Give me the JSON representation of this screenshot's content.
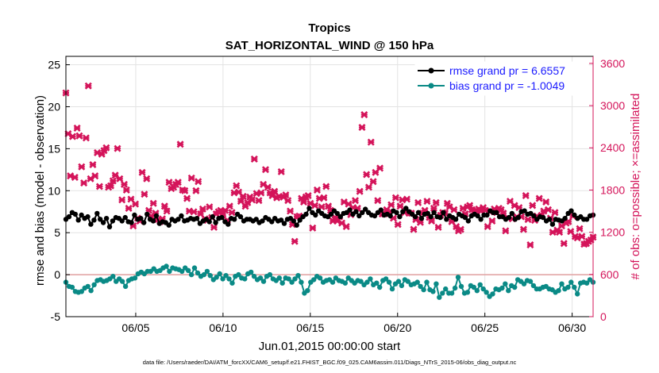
{
  "chart_data": {
    "type": "line",
    "title": "Tropics",
    "subtitle": "SAT_HORIZONTAL_WIND @ 150 hPa",
    "xlabel": "Jun.01,2015 00:00:00 start",
    "ylabel": "rmse and bias (model - observation)",
    "y2label": "# of obs: o=possible; ×=assimilated",
    "footer": "data file: /Users/raeder/DAI/ATM_forcXX/CAM6_setup/f.e21.FHIST_BGC.f09_025.CAM6assim.011/Diags_NTrS_2015-06/obs_diag_output.nc",
    "xlim": [
      1.0,
      31.2
    ],
    "ylim": [
      -5,
      26
    ],
    "y2lim": [
      0,
      3700
    ],
    "x_ticks": [
      5,
      10,
      15,
      20,
      25,
      30
    ],
    "x_tick_labels": [
      "06/05",
      "06/10",
      "06/15",
      "06/20",
      "06/25",
      "06/30"
    ],
    "y_ticks": [
      -5,
      0,
      5,
      10,
      15,
      20,
      25
    ],
    "y_tick_labels": [
      "-5",
      "0",
      "5",
      "10",
      "15",
      "20",
      "25"
    ],
    "y2_ticks": [
      0,
      600,
      1200,
      1800,
      2400,
      3000,
      3600
    ],
    "y2_tick_labels": [
      "0",
      "600",
      "1200",
      "1800",
      "2400",
      "3000",
      "3600"
    ],
    "grid": true,
    "legend_position": "top-right",
    "zero_line": 0,
    "colors": {
      "rmse": "#000000",
      "bias": "#0a8a86",
      "obs": "#d4145a",
      "legend_text": "#1a1aff",
      "grid": "#e3e3e3",
      "zero": "#e0a0a0"
    },
    "series": [
      {
        "name": "rmse grand pr = 6.6557",
        "axis": "left",
        "marker": "circle",
        "values": [
          6.6,
          6.9,
          7.4,
          7.2,
          6.5,
          7.1,
          6.7,
          6.9,
          6.0,
          6.5,
          7.3,
          6.6,
          6.2,
          6.7,
          5.7,
          6.4,
          6.8,
          6.7,
          6.4,
          6.8,
          6.3,
          6.2,
          7.1,
          6.6,
          6.7,
          6.2,
          7.2,
          6.6,
          6.4,
          7.0,
          6.1,
          6.3,
          6.2,
          5.9,
          6.6,
          6.4,
          6.6,
          7.0,
          6.4,
          6.5,
          6.7,
          6.6,
          6.7,
          6.1,
          6.4,
          6.6,
          6.3,
          6.9,
          6.2,
          6.7,
          6.8,
          6.3,
          6.0,
          6.7,
          6.6,
          7.2,
          6.9,
          6.4,
          6.6,
          6.6,
          6.4,
          6.6,
          6.2,
          6.4,
          6.8,
          6.6,
          6.3,
          6.7,
          6.4,
          6.5,
          6.1,
          6.6,
          6.7,
          6.4,
          5.9,
          6.5,
          6.9,
          7.2,
          7.9,
          7.4,
          7.1,
          7.6,
          7.3,
          7.0,
          6.9,
          7.2,
          7.6,
          7.3,
          6.9,
          7.3,
          7.4,
          7.7,
          7.2,
          7.5,
          7.0,
          7.4,
          7.8,
          7.4,
          7.1,
          7.0,
          7.4,
          7.7,
          7.1,
          7.2,
          7.0,
          7.6,
          7.4,
          6.9,
          7.5,
          7.9,
          7.5,
          7.2,
          6.9,
          7.4,
          6.7,
          7.2,
          7.3,
          6.9,
          7.4,
          6.9,
          6.8,
          7.4,
          6.6,
          7.0,
          6.8,
          6.6,
          7.2,
          7.0,
          6.8,
          6.4,
          7.0,
          7.2,
          7.0,
          6.6,
          7.1,
          7.1,
          7.6,
          7.4,
          7.4,
          6.9,
          6.9,
          6.6,
          6.8,
          7.3,
          6.6,
          6.8,
          7.5,
          7.6,
          7.2,
          7.3,
          7.0,
          6.6,
          6.9,
          6.8,
          6.4,
          6.6,
          6.0,
          6.6,
          6.5,
          6.4,
          6.7,
          7.3,
          7.6,
          7.1,
          6.7,
          6.9,
          6.6,
          6.6,
          7.0,
          7.1
        ]
      },
      {
        "name": "bias grand pr = -1.0049",
        "axis": "left",
        "marker": "circle",
        "values": [
          -0.9,
          -1.4,
          -1.5,
          -2.0,
          -2.1,
          -2.0,
          -1.6,
          -1.4,
          -1.9,
          -1.2,
          -0.7,
          -0.6,
          -0.8,
          -0.7,
          -0.5,
          -0.2,
          -0.8,
          -0.5,
          -0.8,
          -1.4,
          -0.7,
          -0.5,
          -0.4,
          0.1,
          0.3,
          0.1,
          0.4,
          0.4,
          0.7,
          0.4,
          0.5,
          0.8,
          1.0,
          0.4,
          0.8,
          0.7,
          0.6,
          0.4,
          0.8,
          0.5,
          0.0,
          0.8,
          0.2,
          -0.2,
          0.0,
          0.4,
          -0.1,
          -0.6,
          -0.3,
          0.1,
          -0.5,
          -0.1,
          -0.5,
          -1.0,
          -0.2,
          0.0,
          -0.4,
          -0.5,
          0.1,
          0.3,
          -0.2,
          -0.6,
          -0.4,
          -0.8,
          -0.2,
          0.0,
          -0.5,
          -0.7,
          -0.4,
          -1.0,
          -0.4,
          -0.5,
          -0.9,
          -0.5,
          -0.1,
          -0.9,
          -2.2,
          -1.9,
          -0.9,
          -0.6,
          -0.2,
          -0.4,
          -0.9,
          -0.7,
          -0.6,
          -0.9,
          -0.4,
          -0.7,
          -0.8,
          -1.0,
          -0.4,
          -0.7,
          -1.0,
          -0.7,
          -0.8,
          -1.2,
          -0.9,
          -0.5,
          -1.2,
          -1.0,
          -1.5,
          -0.7,
          -0.5,
          -0.9,
          -1.7,
          -1.1,
          -0.8,
          -1.3,
          -0.6,
          -0.8,
          -1.2,
          -1.1,
          -0.9,
          -1.4,
          -1.8,
          -0.9,
          -1.8,
          -2.0,
          -1.1,
          -2.7,
          -2.2,
          -1.7,
          -2.2,
          -2.2,
          -1.6,
          -0.3,
          -1.4,
          -2.2,
          -2.1,
          -1.3,
          -1.5,
          -1.9,
          -1.2,
          -1.7,
          -2.1,
          -2.6,
          -2.3,
          -1.7,
          -1.8,
          -1.6,
          -1.1,
          -1.9,
          -1.3,
          -1.5,
          -0.6,
          -0.8,
          -1.1,
          -0.7,
          -0.8,
          -1.3,
          -1.7,
          -1.7,
          -1.5,
          -1.4,
          -1.7,
          -1.8,
          -2.1,
          -1.9,
          -1.1,
          -1.7,
          -1.5,
          -0.9,
          -1.5,
          -2.3,
          -1.0,
          -0.9,
          -1.0,
          -0.6,
          -0.9
        ]
      },
      {
        "name": "# of obs assimilated",
        "axis": "right",
        "marker": "x",
        "values": [
          3180,
          2600,
          2000,
          2560,
          1980,
          2680,
          2570,
          2130,
          1900,
          2540,
          3280,
          1960,
          2160,
          2000,
          2330,
          1850,
          2310,
          2360,
          2400,
          1840,
          1860,
          1930,
          2010,
          2390,
          1960,
          1660,
          1880,
          1800,
          1540,
          1670,
          1290,
          1600,
          1400,
          1360,
          2050,
          1740,
          1960,
          1510,
          1430,
          1610,
          1470,
          1380,
          1350,
          1390,
          1570,
          1500,
          1910,
          1820,
          1840,
          1880,
          1910,
          2450,
          1800,
          1790,
          1680,
          1500,
          1970,
          1490,
          1790,
          1920,
          1460,
          1530,
          1390,
          1370,
          1560,
          1410,
          1270,
          1460,
          1490,
          1510,
          1460,
          1510,
          1370,
          1570,
          1480,
          1760,
          1860,
          1770,
          1640,
          1710,
          1570,
          1620,
          1700,
          1660,
          2240,
          1750,
          1650,
          1760,
          1880,
          2090,
          1840,
          1760,
          1720,
          1780,
          1690,
          1710,
          2060,
          1700,
          1730,
          1650,
          1500,
          1310,
          1070,
          1420,
          1430,
          1680,
          1630,
          1700,
          1720,
          1610,
          1260,
          1580,
          1800,
          1680,
          1560,
          1690,
          1850,
          1570,
          1510,
          1360,
          1410,
          1360,
          1420,
          1330,
          1630,
          1280,
          1600,
          1450,
          1550,
          1650,
          1540,
          1780,
          2690,
          2870,
          2020,
          1840,
          2480,
          1920,
          2050,
          1650,
          2110,
          1460,
          1460,
          1520,
          1480,
          1590,
          1400,
          1690,
          1310,
          1570,
          1660,
          1480,
          1670,
          1470,
          1470,
          1240,
          1380,
          1620,
          1340,
          1470,
          1510,
          1640,
          1410,
          1360,
          1540,
          1620,
          1270,
          1440,
          1480,
          1470,
          1610,
          1560,
          1350,
          1520,
          1280,
          1220,
          1240,
          1540,
          1460,
          1560,
          1580,
          1520,
          1470,
          1510,
          1530,
          1500,
          1550,
          1510,
          1280,
          1490,
          1360,
          1530,
          1480,
          1540,
          1520,
          1470,
          1220,
          1400,
          1640,
          1390,
          1580,
          1420,
          1550,
          1420,
          1240,
          1720,
          1380,
          1020,
          1580,
          1370,
          1430,
          1680,
          1440,
          1500,
          1630,
          1520,
          1400,
          1200,
          1480,
          1230,
          1200,
          1290,
          1040,
          1330,
          1350,
          1210,
          1430,
          1140,
          1120,
          1250,
          1140,
          1030,
          1040,
          1070,
          1090,
          1130
        ]
      }
    ]
  },
  "legend": {
    "rmse_label": "rmse grand pr = 6.6557",
    "bias_label": "bias grand pr = -1.0049"
  }
}
